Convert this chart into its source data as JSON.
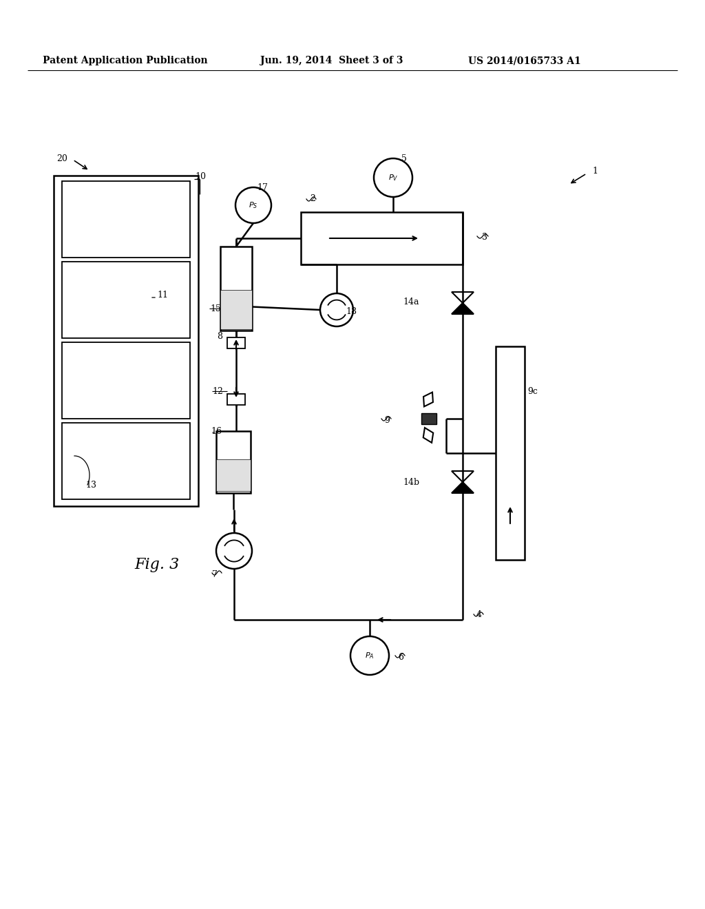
{
  "title_left": "Patent Application Publication",
  "title_mid": "Jun. 19, 2014  Sheet 3 of 3",
  "title_right": "US 2014/0165733 A1",
  "fig_label": "Fig. 3",
  "background": "#ffffff",
  "lw": 1.8
}
